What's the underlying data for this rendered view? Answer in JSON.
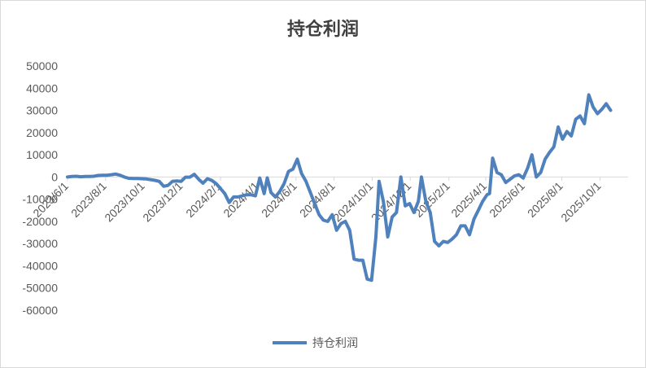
{
  "chart_data": {
    "type": "line",
    "title": "持仓利润",
    "xlabel": "",
    "ylabel": "",
    "ylim": [
      -60000,
      50000
    ],
    "y_ticks": [
      50000,
      40000,
      30000,
      20000,
      10000,
      0,
      -10000,
      -20000,
      -30000,
      -40000,
      -50000,
      -60000
    ],
    "y_tick_labels": [
      "50000",
      "40000",
      "30000",
      "20000",
      "10000",
      "0",
      "-10000",
      "-20000",
      "-30000",
      "-40000",
      "-50000",
      "-60000"
    ],
    "x_range": [
      "2023-06-01",
      "2025-11-15"
    ],
    "x_ticks": [
      "2023-06-01",
      "2023-08-01",
      "2023-10-01",
      "2023-12-01",
      "2024-02-01",
      "2024-04-01",
      "2024-06-01",
      "2024-08-01",
      "2024-10-01",
      "2024-12-01",
      "2025-02-01",
      "2025-04-01",
      "2025-06-01",
      "2025-08-01",
      "2025-10-01"
    ],
    "x_tick_labels": [
      "2023/6/1",
      "2023/8/1",
      "2023/10/1",
      "2023/12/1",
      "2024/2/1",
      "2024/4/1",
      "2024/6/1",
      "2024/8/1",
      "2024/10/1",
      "2024/12/1",
      "2025/2/1",
      "2025/4/1",
      "2025/6/1",
      "2025/8/1",
      "2025/10/1"
    ],
    "grid": false,
    "legend": "bottom",
    "series": [
      {
        "name": "持仓利润",
        "color": "#4f81bd",
        "points": [
          [
            "2023-06-01",
            0
          ],
          [
            "2023-06-08",
            200
          ],
          [
            "2023-06-15",
            300
          ],
          [
            "2023-06-22",
            100
          ],
          [
            "2023-06-29",
            200
          ],
          [
            "2023-07-06",
            200
          ],
          [
            "2023-07-13",
            300
          ],
          [
            "2023-07-20",
            700
          ],
          [
            "2023-07-27",
            800
          ],
          [
            "2023-08-03",
            800
          ],
          [
            "2023-08-10",
            1000
          ],
          [
            "2023-08-17",
            1300
          ],
          [
            "2023-08-24",
            800
          ],
          [
            "2023-08-31",
            0
          ],
          [
            "2023-09-07",
            -600
          ],
          [
            "2023-09-14",
            -700
          ],
          [
            "2023-09-21",
            -700
          ],
          [
            "2023-09-28",
            -800
          ],
          [
            "2023-10-05",
            -900
          ],
          [
            "2023-10-12",
            -1200
          ],
          [
            "2023-10-19",
            -1500
          ],
          [
            "2023-10-26",
            -2000
          ],
          [
            "2023-11-02",
            -4200
          ],
          [
            "2023-11-09",
            -3800
          ],
          [
            "2023-11-16",
            -2000
          ],
          [
            "2023-11-23",
            -1800
          ],
          [
            "2023-11-30",
            -2000
          ],
          [
            "2023-12-07",
            -100
          ],
          [
            "2023-12-14",
            -100
          ],
          [
            "2023-12-21",
            1200
          ],
          [
            "2023-12-28",
            -1000
          ],
          [
            "2024-01-04",
            -2800
          ],
          [
            "2024-01-11",
            -800
          ],
          [
            "2024-01-18",
            -1500
          ],
          [
            "2024-01-25",
            -3000
          ],
          [
            "2024-02-01",
            -5200
          ],
          [
            "2024-02-08",
            -7500
          ],
          [
            "2024-02-15",
            -11500
          ],
          [
            "2024-02-22",
            -9000
          ],
          [
            "2024-02-29",
            -9000
          ],
          [
            "2024-03-07",
            -8500
          ],
          [
            "2024-03-14",
            -8000
          ],
          [
            "2024-03-21",
            -8000
          ],
          [
            "2024-03-28",
            -8500
          ],
          [
            "2024-04-04",
            -500
          ],
          [
            "2024-04-11",
            -7500
          ],
          [
            "2024-04-16",
            -400
          ],
          [
            "2024-04-22",
            -7000
          ],
          [
            "2024-04-29",
            -9000
          ],
          [
            "2024-05-06",
            -6500
          ],
          [
            "2024-05-13",
            -3000
          ],
          [
            "2024-05-20",
            2500
          ],
          [
            "2024-05-27",
            3500
          ],
          [
            "2024-06-03",
            8000
          ],
          [
            "2024-06-10",
            1500
          ],
          [
            "2024-06-17",
            -2000
          ],
          [
            "2024-06-24",
            -7000
          ],
          [
            "2024-07-01",
            -12000
          ],
          [
            "2024-07-08",
            -17000
          ],
          [
            "2024-07-15",
            -19500
          ],
          [
            "2024-07-22",
            -20000
          ],
          [
            "2024-07-29",
            -17000
          ],
          [
            "2024-08-05",
            -24000
          ],
          [
            "2024-08-12",
            -21000
          ],
          [
            "2024-08-19",
            -20000
          ],
          [
            "2024-08-26",
            -24000
          ],
          [
            "2024-09-02",
            -37000
          ],
          [
            "2024-09-09",
            -37500
          ],
          [
            "2024-09-16",
            -37500
          ],
          [
            "2024-09-23",
            -46000
          ],
          [
            "2024-09-30",
            -46500
          ],
          [
            "2024-10-07",
            -27000
          ],
          [
            "2024-10-12",
            -2000
          ],
          [
            "2024-10-19",
            -11000
          ],
          [
            "2024-10-26",
            -27000
          ],
          [
            "2024-11-02",
            -18000
          ],
          [
            "2024-11-09",
            -16000
          ],
          [
            "2024-11-16",
            0
          ],
          [
            "2024-11-23",
            -13000
          ],
          [
            "2024-11-30",
            -12000
          ],
          [
            "2024-12-07",
            -16000
          ],
          [
            "2024-12-14",
            -11000
          ],
          [
            "2024-12-19",
            0
          ],
          [
            "2024-12-26",
            -11000
          ],
          [
            "2025-01-02",
            -16000
          ],
          [
            "2025-01-09",
            -29000
          ],
          [
            "2025-01-16",
            -31000
          ],
          [
            "2025-01-23",
            -29000
          ],
          [
            "2025-01-30",
            -29500
          ],
          [
            "2025-02-06",
            -28000
          ],
          [
            "2025-02-13",
            -26000
          ],
          [
            "2025-02-20",
            -22000
          ],
          [
            "2025-02-27",
            -22000
          ],
          [
            "2025-03-06",
            -26000
          ],
          [
            "2025-03-13",
            -19000
          ],
          [
            "2025-03-20",
            -15000
          ],
          [
            "2025-03-27",
            -11000
          ],
          [
            "2025-04-03",
            -8000
          ],
          [
            "2025-04-07",
            -7500
          ],
          [
            "2025-04-12",
            8500
          ],
          [
            "2025-04-19",
            2000
          ],
          [
            "2025-04-26",
            1000
          ],
          [
            "2025-05-03",
            -2500
          ],
          [
            "2025-05-10",
            -1000
          ],
          [
            "2025-05-17",
            500
          ],
          [
            "2025-05-24",
            1000
          ],
          [
            "2025-05-31",
            -500
          ],
          [
            "2025-06-07",
            4000
          ],
          [
            "2025-06-14",
            10000
          ],
          [
            "2025-06-21",
            0
          ],
          [
            "2025-06-28",
            2000
          ],
          [
            "2025-07-05",
            8000
          ],
          [
            "2025-07-12",
            11000
          ],
          [
            "2025-07-19",
            13500
          ],
          [
            "2025-07-26",
            22500
          ],
          [
            "2025-08-02",
            17000
          ],
          [
            "2025-08-09",
            20500
          ],
          [
            "2025-08-16",
            18500
          ],
          [
            "2025-08-23",
            26000
          ],
          [
            "2025-08-30",
            27500
          ],
          [
            "2025-09-06",
            24000
          ],
          [
            "2025-09-13",
            37000
          ],
          [
            "2025-09-20",
            31500
          ],
          [
            "2025-09-27",
            28500
          ],
          [
            "2025-10-04",
            30500
          ],
          [
            "2025-10-11",
            33000
          ],
          [
            "2025-10-18",
            30000
          ]
        ]
      }
    ]
  }
}
